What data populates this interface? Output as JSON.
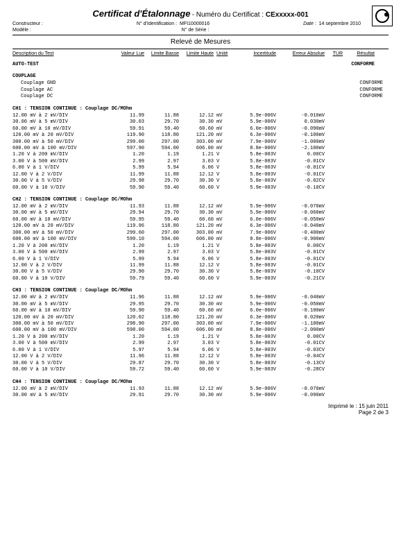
{
  "header": {
    "title": "Certificat d'Étalonnage",
    "numLabel": " - Numéro du Certificat : ",
    "certNum": "CExxxxx-001",
    "constructLabel": "Constructeur :",
    "identLabel": "N° d'Identification :",
    "identVal": "MFI10000016",
    "dateLabel": "Date :",
    "dateVal": "14 septembre 2010",
    "modelLabel": "Modèle :",
    "serialLabel": "N° de Série :",
    "reportTitle": "Relevé de Mesures"
  },
  "columns": {
    "desc": "Description du Test",
    "vl": "Valeur Lue",
    "lb": "Limite Basse",
    "lh": "Limite Haute",
    "u": "Unité",
    "inc": "Incertitude",
    "err": "Erreur Absolue",
    "tur": "TUR",
    "res": "Résultat"
  },
  "autotest": {
    "label": "AUTO-TEST",
    "res": "CONFORME"
  },
  "couplage": {
    "label": "COUPLAGE",
    "rows": [
      {
        "desc": "Couplage GND",
        "res": "CONFORME"
      },
      {
        "desc": "Couplage AC",
        "res": "CONFORME"
      },
      {
        "desc": "Couplage DC",
        "res": "CONFORME"
      }
    ]
  },
  "sections": [
    {
      "title": "CH1 : TENSION CONTINUE : Couplage DC/MOhm",
      "rows": [
        {
          "desc": "12.00 mV à 2 mV/DIV",
          "vl": "11.99",
          "lb": "11.88",
          "lh": "12.12",
          "u": "mV",
          "inc": "5.9e-006V",
          "err": "-0.010mV"
        },
        {
          "desc": "30.00 mV à 5 mV/DIV",
          "vl": "30.03",
          "lb": "29.70",
          "lh": "30.30",
          "u": "mV",
          "inc": "5.9e-006V",
          "err": "0.030mV"
        },
        {
          "desc": "60.00 mV à 10 mV/DIV",
          "vl": "59.91",
          "lb": "59.40",
          "lh": "60.60",
          "u": "mV",
          "inc": "6.0e-006V",
          "err": "-0.090mV"
        },
        {
          "desc": "120.00 mV à 20 mV/DIV",
          "vl": "119.90",
          "lb": "118.80",
          "lh": "121.20",
          "u": "mV",
          "inc": "6.3e-006V",
          "err": "-0.100mV"
        },
        {
          "desc": "300.00 mV à 50 mV/DIV",
          "vl": "299.00",
          "lb": "297.00",
          "lh": "303.00",
          "u": "mV",
          "inc": "7.9e-006V",
          "err": "-1.000mV"
        },
        {
          "desc": "600.00 mV à 100 mV/DIV",
          "vl": "597.90",
          "lb": "594.00",
          "lh": "606.00",
          "u": "mV",
          "inc": "8.8e-006V",
          "err": "-2.100mV"
        },
        {
          "desc": "1.20 V à 200 mV/DIV",
          "vl": "1.20",
          "lb": "1.19",
          "lh": "1.21",
          "u": "V",
          "inc": "5.8e-003V",
          "err": "0.00CV"
        },
        {
          "desc": "3.00 V à 500 mV/DIV",
          "vl": "2.99",
          "lb": "2.97",
          "lh": "3.03",
          "u": "V",
          "inc": "5.8e-003V",
          "err": "-0.01CV"
        },
        {
          "desc": "6.00 V à 1 V/DIV",
          "vl": "5.99",
          "lb": "5.94",
          "lh": "6.06",
          "u": "V",
          "inc": "5.8e-003V",
          "err": "-0.01CV"
        },
        {
          "desc": "12.00 V à 2 V/DIV",
          "vl": "11.99",
          "lb": "11.88",
          "lh": "12.12",
          "u": "V",
          "inc": "5.8e-003V",
          "err": "-0.01CV"
        },
        {
          "desc": "30.00 V à 5 V/DIV",
          "vl": "29.98",
          "lb": "29.70",
          "lh": "30.30",
          "u": "V",
          "inc": "5.8e-003V",
          "err": "-0.02CV"
        },
        {
          "desc": "60.00 V à 10 V/DIV",
          "vl": "59.90",
          "lb": "59.40",
          "lh": "60.60",
          "u": "V",
          "inc": "5.9e-003V",
          "err": "-0.10CV"
        }
      ]
    },
    {
      "title": "CH2 : TENSION CONTINUE : Couplage DC/MOhm",
      "rows": [
        {
          "desc": "12.00 mV à 2 mV/DIV",
          "vl": "11.93",
          "lb": "11.88",
          "lh": "12.12",
          "u": "mV",
          "inc": "5.9e-006V",
          "err": "-0.070mV"
        },
        {
          "desc": "30.00 mV à 5 mV/DIV",
          "vl": "29.94",
          "lb": "29.70",
          "lh": "30.30",
          "u": "mV",
          "inc": "5.9e-006V",
          "err": "-0.060mV"
        },
        {
          "desc": "60.00 mV à 10 mV/DIV",
          "vl": "59.95",
          "lb": "59.40",
          "lh": "60.60",
          "u": "mV",
          "inc": "6.0e-006V",
          "err": "-0.050mV"
        },
        {
          "desc": "120.00 mV à 20 mV/DIV",
          "vl": "119.96",
          "lb": "118.80",
          "lh": "121.20",
          "u": "mV",
          "inc": "6.3e-006V",
          "err": "-0.040mV"
        },
        {
          "desc": "300.00 mV à 50 mV/DIV",
          "vl": "299.60",
          "lb": "297.00",
          "lh": "303.00",
          "u": "mV",
          "inc": "7.9e-006V",
          "err": "-0.400mV"
        },
        {
          "desc": "600.00 mV à 100 mV/DIV",
          "vl": "599.10",
          "lb": "594.00",
          "lh": "606.00",
          "u": "mV",
          "inc": "8.8e-006V",
          "err": "-0.900mV"
        },
        {
          "desc": "1.20 V à 200 mV/DIV",
          "vl": "1.20",
          "lb": "1.19",
          "lh": "1.21",
          "u": "V",
          "inc": "5.8e-003V",
          "err": "0.00CV"
        },
        {
          "desc": "3.00 V à 500 mV/DIV",
          "vl": "2.99",
          "lb": "2.97",
          "lh": "3.03",
          "u": "V",
          "inc": "5.8e-003V",
          "err": "-0.01CV"
        },
        {
          "desc": "6.00 V à 1 V/DIV",
          "vl": "5.99",
          "lb": "5.94",
          "lh": "6.06",
          "u": "V",
          "inc": "5.8e-003V",
          "err": "-0.01CV"
        },
        {
          "desc": "12.00 V à 2 V/DIV",
          "vl": "11.99",
          "lb": "11.88",
          "lh": "12.12",
          "u": "V",
          "inc": "5.8e-003V",
          "err": "-0.01CV"
        },
        {
          "desc": "30.00 V à 5 V/DIV",
          "vl": "29.90",
          "lb": "29.70",
          "lh": "30.30",
          "u": "V",
          "inc": "5.8e-003V",
          "err": "-0.10CV"
        },
        {
          "desc": "60.00 V à 10 V/DIV",
          "vl": "59.79",
          "lb": "59.40",
          "lh": "60.60",
          "u": "V",
          "inc": "5.9e-003V",
          "err": "-0.21CV"
        }
      ]
    },
    {
      "title": "CH3 : TENSION CONTINUE : Couplage DC/MOhm",
      "rows": [
        {
          "desc": "12.00 mV à 2 mV/DIV",
          "vl": "11.96",
          "lb": "11.88",
          "lh": "12.12",
          "u": "mV",
          "inc": "5.9e-006V",
          "err": "-0.040mV"
        },
        {
          "desc": "30.00 mV à 5 mV/DIV",
          "vl": "29.95",
          "lb": "29.70",
          "lh": "30.30",
          "u": "mV",
          "inc": "5.9e-006V",
          "err": "-0.050mV"
        },
        {
          "desc": "60.00 mV à 10 mV/DIV",
          "vl": "59.90",
          "lb": "59.40",
          "lh": "60.60",
          "u": "mV",
          "inc": "6.0e-006V",
          "err": "-0.100mV"
        },
        {
          "desc": "120.00 mV à 20 mV/DIV",
          "vl": "120.02",
          "lb": "118.80",
          "lh": "121.20",
          "u": "mV",
          "inc": "6.3e-006V",
          "err": "0.020mV"
        },
        {
          "desc": "300.00 mV à 50 mV/DIV",
          "vl": "298.90",
          "lb": "297.00",
          "lh": "303.00",
          "u": "mV",
          "inc": "7.9e-006V",
          "err": "-1.100mV"
        },
        {
          "desc": "600.00 mV à 100 mV/DIV",
          "vl": "598.00",
          "lb": "594.00",
          "lh": "606.00",
          "u": "mV",
          "inc": "8.8e-006V",
          "err": "-2.000mV"
        },
        {
          "desc": "1.20 V à 200 mV/DIV",
          "vl": "1.20",
          "lb": "1.19",
          "lh": "1.21",
          "u": "V",
          "inc": "5.8e-003V",
          "err": "0.00CV"
        },
        {
          "desc": "3.00 V à 500 mV/DIV",
          "vl": "2.99",
          "lb": "2.97",
          "lh": "3.03",
          "u": "V",
          "inc": "5.8e-003V",
          "err": "-0.01CV"
        },
        {
          "desc": "6.00 V à 1 V/DIV",
          "vl": "5.97",
          "lb": "5.94",
          "lh": "6.06",
          "u": "V",
          "inc": "5.8e-003V",
          "err": "-0.03CV"
        },
        {
          "desc": "12.00 V à 2 V/DIV",
          "vl": "11.96",
          "lb": "11.88",
          "lh": "12.12",
          "u": "V",
          "inc": "5.8e-003V",
          "err": "-0.04CV"
        },
        {
          "desc": "30.00 V à 5 V/DIV",
          "vl": "29.87",
          "lb": "29.70",
          "lh": "30.30",
          "u": "V",
          "inc": "5.8e-003V",
          "err": "-0.13CV"
        },
        {
          "desc": "60.00 V à 10 V/DIV",
          "vl": "59.72",
          "lb": "59.40",
          "lh": "60.60",
          "u": "V",
          "inc": "5.9e-003V",
          "err": "-0.28CV"
        }
      ]
    },
    {
      "title": "CH4 : TENSION CONTINUE : Couplage DC/MOhm",
      "rows": [
        {
          "desc": "12.00 mV à 2 mV/DIV",
          "vl": "11.93",
          "lb": "11.88",
          "lh": "12.12",
          "u": "mV",
          "inc": "5.9e-006V",
          "err": "-0.070mV"
        },
        {
          "desc": "30.00 mV à 5 mV/DIV",
          "vl": "29.91",
          "lb": "29.70",
          "lh": "30.30",
          "u": "mV",
          "inc": "5.9e-006V",
          "err": "-0.090mV"
        }
      ]
    }
  ],
  "footer": {
    "printed": "Imprimé le : 15 juin 2011",
    "page": "Page 2 de 3"
  }
}
